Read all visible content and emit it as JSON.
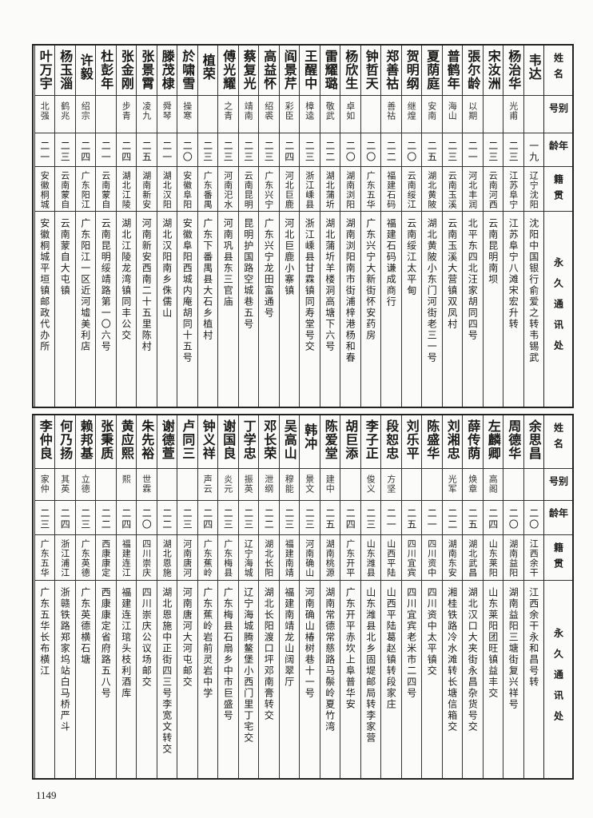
{
  "headers": [
    "姓名",
    "别号",
    "年龄",
    "籍贯",
    "永久通讯处"
  ],
  "top_table": [
    {
      "name": "韦达",
      "alias": "",
      "age": "一九",
      "native": "辽宁沈阳",
      "address": "沈阳中国银行俞爱之转韦锡武"
    },
    {
      "name": "杨治华",
      "alias": "光甫",
      "age": "二三",
      "native": "江苏阜宁",
      "address": "江苏阜宁八滩宋宏升转"
    },
    {
      "name": "宋汝洲",
      "alias": "",
      "age": "二三",
      "native": "云南河西",
      "address": "云南昆明南坝"
    },
    {
      "name": "張尔龄",
      "alias": "以期",
      "age": "二一",
      "native": "河北丰润",
      "address": "北平东四北汪家胡同四号"
    },
    {
      "name": "普鹤年",
      "alias": "海山",
      "age": "二三",
      "native": "云南玉溪",
      "address": "云南玉溪大营镇双凤村"
    },
    {
      "name": "夏荫庭",
      "alias": "安南",
      "age": "二五",
      "native": "湖北黄陂",
      "address": "湖北黄陂小东门河街老三一号"
    },
    {
      "name": "贺明纲",
      "alias": "继煌",
      "age": "二〇",
      "native": "云南绥江",
      "address": "云南绥江太平甸"
    },
    {
      "name": "郑善祜",
      "alias": "善祜",
      "age": "二二",
      "native": "福建石码",
      "address": "福建石码谦成商行"
    },
    {
      "name": "钟哲天",
      "alias": "",
      "age": "二〇",
      "native": "广东五华",
      "address": "广东兴宁大新街怀安药房"
    },
    {
      "name": "杨欣生",
      "alias": "卓如",
      "age": "二〇",
      "native": "湖南浏阳",
      "address": "湖南浏阳南市街浦梓港杨和春"
    },
    {
      "name": "雷耀璐",
      "alias": "敬武",
      "age": "二二",
      "native": "湖北蒲圻",
      "address": "湖北蒲圻羊楼洞高塘下六号"
    },
    {
      "name": "王醒中",
      "alias": "樟逵",
      "age": "二三",
      "native": "浙江嵊县",
      "address": "浙江嵊县甘霖镇同寿堂号交"
    },
    {
      "name": "阎景芹",
      "alias": "彩臣",
      "age": "二四",
      "native": "河北巨鹿",
      "address": "河北巨鹿小寨镇"
    },
    {
      "name": "高益怀",
      "alias": "绍裘",
      "age": "二三",
      "native": "广东兴宁",
      "address": "广东兴宁龙田富通号"
    },
    {
      "name": "蔡复光",
      "alias": "靖南",
      "age": "二三",
      "native": "云南昆明",
      "address": "昆明护国路空城巷五号"
    },
    {
      "name": "傅光耀",
      "alias": "之青",
      "age": "二三",
      "native": "河南汜水",
      "address": "河南巩县东三官庙"
    },
    {
      "name": "植荣",
      "alias": "",
      "age": "二三",
      "native": "广东番禺",
      "address": "广东下番禺县大石乡植村"
    },
    {
      "name": "於啸雪",
      "alias": "操寒",
      "age": "二〇",
      "native": "安徽阜阳",
      "address": "安徽阜阳西城内庵胡同十五号"
    },
    {
      "name": "滕茂棣",
      "alias": "舜琴",
      "age": "二一",
      "native": "湖北汉阳",
      "address": "湖北汉阳南乡侏儒山"
    },
    {
      "name": "张景霄",
      "alias": "凌九",
      "age": "二五",
      "native": "湖南新安",
      "address": "河南新安西南二十五里陈村"
    },
    {
      "name": "张金刚",
      "alias": "步青",
      "age": "二四",
      "native": "湖北江陵",
      "address": "湖北江陵龙湾镇同丰公交"
    },
    {
      "name": "杜彭年",
      "alias": "",
      "age": "二一",
      "native": "云南蒙自",
      "address": "云南昆明绥靖路第一〇六号"
    },
    {
      "name": "许毅",
      "alias": "绍宗",
      "age": "二四",
      "native": "广东阳江",
      "address": "广东阳江一区近河墟美利店"
    },
    {
      "name": "杨玉淄",
      "alias": "鹤兆",
      "age": "二三",
      "native": "云南蒙自",
      "address": "云南蒙自大屯镇"
    },
    {
      "name": "叶万宇",
      "alias": "北强",
      "age": "二一",
      "native": "安徽桐城",
      "address": "安徽桐城平垣镇邮政代办所"
    }
  ],
  "bottom_table": [
    {
      "name": "余思昌",
      "alias": "",
      "age": "二〇",
      "native": "江西余干",
      "address": "江西余干永和昌号转"
    },
    {
      "name": "周德华",
      "alias": "",
      "age": "二〇",
      "native": "湖南益阳",
      "address": "湖南益阳三塘街复兴祥号"
    },
    {
      "name": "左麟卿",
      "alias": "高阁",
      "age": "二四",
      "native": "山东莱阳",
      "address": "山东莱阳团旺镇益丰交"
    },
    {
      "name": "薛传荫",
      "alias": "焕章",
      "age": "二五",
      "native": "湖北武昌",
      "address": "湖北汉口大夹街永昌杂货号交"
    },
    {
      "name": "刘湘忠",
      "alias": "光军",
      "age": "二二",
      "native": "湖南东安",
      "address": "湘桂铁路冷水滩转长塘信箱交"
    },
    {
      "name": "陈盛华",
      "alias": "",
      "age": "二一",
      "native": "四川资中",
      "address": "四川资中太平镇交"
    },
    {
      "name": "刘乐平",
      "alias": "",
      "age": "二五",
      "native": "四川宜宾",
      "address": "四川宜宾老米市二四号"
    },
    {
      "name": "段恕忠",
      "alias": "方坚",
      "age": "二一",
      "native": "山西平陆",
      "address": "山西平陆葛赵镇转段家庄"
    },
    {
      "name": "李子正",
      "alias": "俊义",
      "age": "二三",
      "native": "山东潍县",
      "address": "山东潍县北乡固堤邮局转李家营"
    },
    {
      "name": "胡巨添",
      "alias": "",
      "age": "二四",
      "native": "广东开平",
      "address": "广东开平赤坎上阜普华安"
    },
    {
      "name": "陈爱堂",
      "alias": "建中",
      "age": "二五",
      "native": "湖南桃源",
      "address": "湖南常德常慈路马鬃岭夏竹湾"
    },
    {
      "name": "韩冲",
      "alias": "景文",
      "age": "二三",
      "native": "河南确山",
      "address": "河南确山椿树巷十一号"
    },
    {
      "name": "吴高山",
      "alias": "穆能",
      "age": "二三",
      "native": "福建南靖",
      "address": "福建南靖龙山阔翠厅"
    },
    {
      "name": "邓长荣",
      "alias": "泄纲",
      "age": "二二",
      "native": "湖北长阳",
      "address": "湖北长阳渡口坪邓南膏转交"
    },
    {
      "name": "丁学忠",
      "alias": "振英",
      "age": "二三",
      "native": "辽宁海城",
      "address": "辽宁海城腾鳌堡小西门里丁宅交"
    },
    {
      "name": "谢国良",
      "alias": "炎元",
      "age": "二三",
      "native": "广东梅县",
      "address": "广东梅县石扇乡中市巨盛号"
    },
    {
      "name": "钟义祥",
      "alias": "声云",
      "age": "二四",
      "native": "广东蕉岭",
      "address": "广东蕉岭岩前灵岩中学"
    },
    {
      "name": "卢同三",
      "alias": "",
      "age": "二三",
      "native": "河南唐河",
      "address": "河南唐河大河屯邮交"
    },
    {
      "name": "谢德萱",
      "alias": "",
      "age": "二二",
      "native": "湖北恩施",
      "address": "湖北恩施中正街四三号李宽文转交"
    },
    {
      "name": "朱先裕",
      "alias": "世霖",
      "age": "二〇",
      "native": "四川崇庆",
      "address": "四川崇庆公议场邮交"
    },
    {
      "name": "黄应熙",
      "alias": "熙",
      "age": "二四",
      "native": "福建连江",
      "address": "福建连江琯头枝利酒库"
    },
    {
      "name": "张秉质",
      "alias": "",
      "age": "二二",
      "native": "西康康定",
      "address": "西康康定省府路五八号"
    },
    {
      "name": "赖邦基",
      "alias": "立德",
      "age": "二三",
      "native": "广东英德",
      "address": "广东英德横石塘"
    },
    {
      "name": "何乃扬",
      "alias": "其英",
      "age": "二四",
      "native": "浙江浦江",
      "address": "浙赣铁路郑家坞站白马桥严斗"
    },
    {
      "name": "李仲良",
      "alias": "家仲",
      "age": "二三",
      "native": "广东五华",
      "address": "广东五华长布横江"
    }
  ],
  "page_number": "1149"
}
